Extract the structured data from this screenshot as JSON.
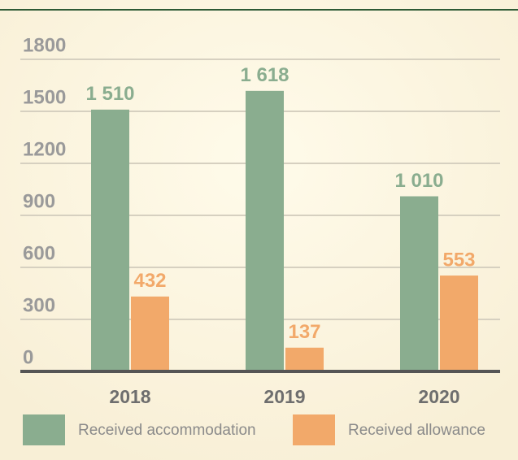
{
  "chart_data": {
    "type": "bar",
    "categories": [
      "2018",
      "2019",
      "2020"
    ],
    "series": [
      {
        "name": "Received accommodation",
        "color": "#8aad8f",
        "values": [
          1510,
          1618,
          1010
        ],
        "value_labels": [
          "1 510",
          "1 618",
          "1 010"
        ]
      },
      {
        "name": "Received allowance",
        "color": "#f2a96a",
        "values": [
          432,
          137,
          553
        ]
      }
    ],
    "ylim": [
      0,
      1800
    ],
    "yticks": [
      0,
      300,
      600,
      900,
      1200,
      1500,
      1800
    ],
    "grid": true,
    "legend": "bottom"
  }
}
